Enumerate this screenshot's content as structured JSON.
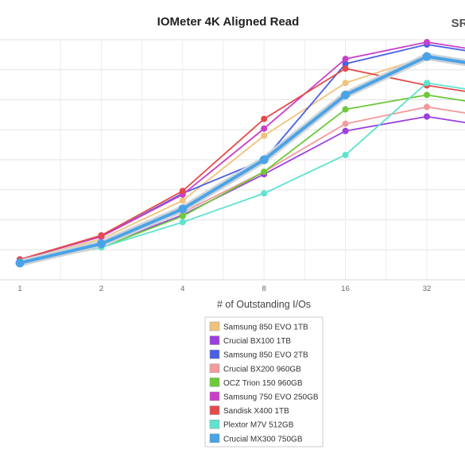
{
  "watermark": "SR",
  "chart_data": {
    "type": "line",
    "title": "IOMeter 4K Aligned Read",
    "xlabel": "# of Outstanding I/Os",
    "ylabel": "",
    "x": [
      "1",
      "2",
      "4",
      "8",
      "16",
      "32"
    ],
    "ylim": [
      0,
      100
    ],
    "grid": true,
    "legend_position": "bottom",
    "series": [
      {
        "name": "Samsung 850 EVO 1TB",
        "color": "#f1c27d",
        "values": [
          8.0,
          17.0,
          33.0,
          60.0,
          82.0,
          93.0
        ]
      },
      {
        "name": "Crucial BX100 1TB",
        "color": "#9b3fe0",
        "values": [
          7.0,
          14.0,
          27.0,
          44.0,
          62.0,
          68.0
        ]
      },
      {
        "name": "Samsung 850 EVO 2TB",
        "color": "#4a5fe6",
        "values": [
          8.5,
          18.0,
          36.0,
          50.0,
          90.0,
          98.0
        ]
      },
      {
        "name": "Crucial BX200 960GB",
        "color": "#f49b9b",
        "values": [
          7.0,
          15.0,
          28.0,
          45.0,
          65.0,
          72.0
        ]
      },
      {
        "name": "OCZ Trion 150 960GB",
        "color": "#6ec93b",
        "values": [
          6.5,
          13.5,
          26.5,
          45.0,
          71.0,
          77.0
        ]
      },
      {
        "name": "Samsung 750 EVO 250GB",
        "color": "#c93fc9",
        "values": [
          8.5,
          18.0,
          35.5,
          63.0,
          92.0,
          99.0
        ]
      },
      {
        "name": "Sandisk X400 1TB",
        "color": "#e44a4a",
        "values": [
          8.5,
          18.5,
          37.0,
          67.0,
          88.0,
          81.0
        ]
      },
      {
        "name": "Plextor M7V 512GB",
        "color": "#5ee3cf",
        "values": [
          7.0,
          13.5,
          24.0,
          36.0,
          52.0,
          82.0
        ]
      },
      {
        "name": "Crucial MX300 750GB",
        "color": "#4aa3e6",
        "values": [
          7.0,
          15.0,
          29.5,
          50.0,
          77.0,
          93.0
        ]
      }
    ]
  }
}
